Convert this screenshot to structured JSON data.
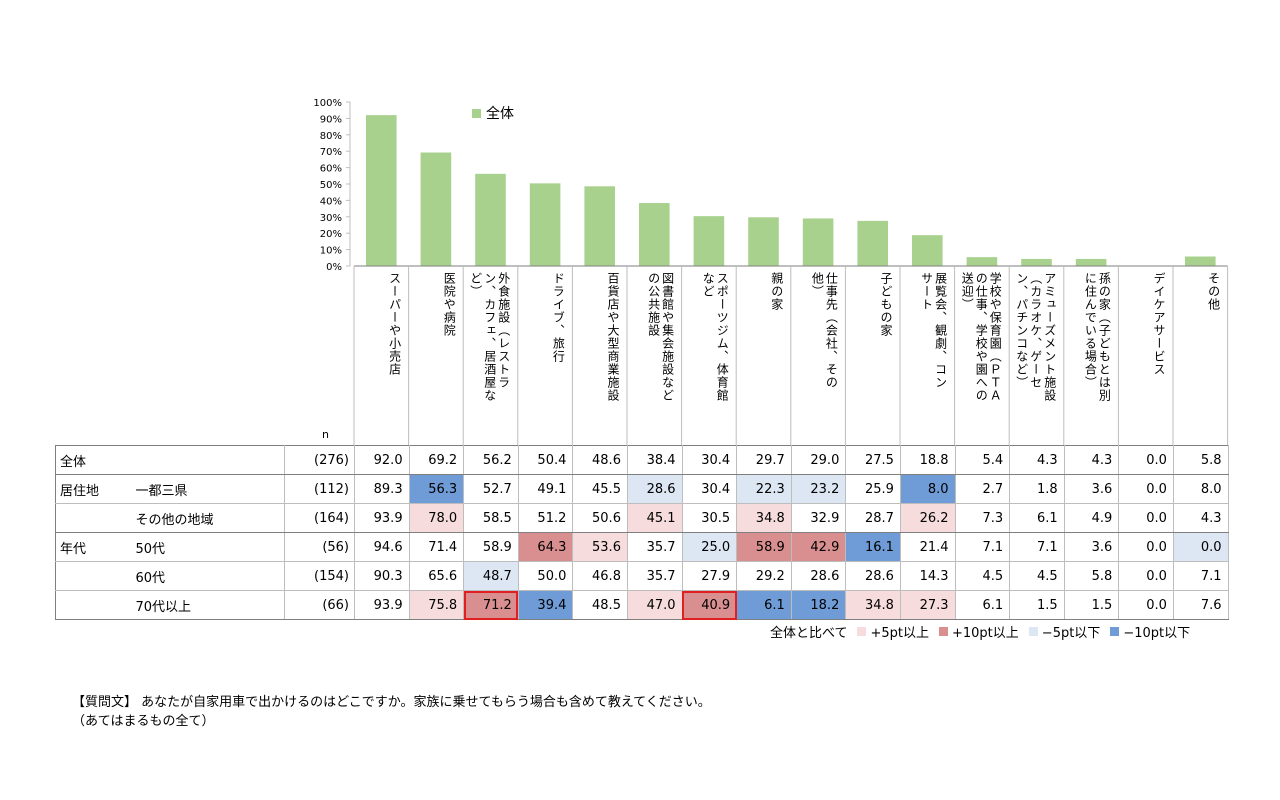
{
  "chart_data": {
    "type": "bar",
    "legend": "全体",
    "legend_color": "#a9d18e",
    "ylim": [
      0,
      100
    ],
    "y_ticks": [
      "0%",
      "10%",
      "20%",
      "30%",
      "40%",
      "50%",
      "60%",
      "70%",
      "80%",
      "90%",
      "100%"
    ],
    "categories": [
      "スーパーや小売店",
      "医院や病院",
      "外食施設（レストラン、カフェ、居酒屋など）",
      "ドライブ、旅行",
      "百貨店や大型商業施設",
      "図書館や集会施設などの公共施設",
      "スポーツジム、体育館など",
      "親の家",
      "仕事先（会社、その他）",
      "子どもの家",
      "展覧会、観劇、コンサート",
      "学校や保育園（ＰＴＡの仕事、学校や園への送迎）",
      "アミューズメント施設（カラオケ、ゲーセン、パチンコなど）",
      "孫の家（子どもとは別に住んでいる場合）",
      "デイケアサービス",
      "その他"
    ],
    "column_lines": [
      [
        "スーパーや小売店"
      ],
      [
        "医院や病院"
      ],
      [
        "外食施設（レストラ",
        "ン、カフェ、居酒屋な",
        "ど）"
      ],
      [
        "ドライブ、旅行"
      ],
      [
        "百貨店や大型商業施設"
      ],
      [
        "図書館や集会施設など",
        "の公共施設"
      ],
      [
        "スポーツジム、体育館",
        "など"
      ],
      [
        "親の家"
      ],
      [
        "仕事先（会社、その",
        "他）"
      ],
      [
        "子どもの家"
      ],
      [
        "展覧会、観劇、コン",
        "サート"
      ],
      [
        "学校や保育園（ＰＴＡ",
        "の仕事、学校や園への",
        "送迎）"
      ],
      [
        "アミューズメント施設",
        "（カラオケ、ゲーセ",
        "ン、パチンコなど）"
      ],
      [
        "孫の家（子どもとは別",
        "に住んでいる場合）"
      ],
      [
        "デイケアサービス"
      ],
      [
        "その他"
      ]
    ],
    "values": [
      92.0,
      69.2,
      56.2,
      50.4,
      48.6,
      38.4,
      30.4,
      29.7,
      29.0,
      27.5,
      18.8,
      5.4,
      4.3,
      4.3,
      0.0,
      5.8
    ]
  },
  "table": {
    "n_header": "n",
    "rows": [
      {
        "group": "全体",
        "sub": "",
        "n": "(276)",
        "values": [
          "92.0",
          "69.2",
          "56.2",
          "50.4",
          "48.6",
          "38.4",
          "30.4",
          "29.7",
          "29.0",
          "27.5",
          "18.8",
          "5.4",
          "4.3",
          "4.3",
          "0.0",
          "5.8"
        ],
        "marks": [
          "",
          "",
          "",
          "",
          "",
          "",
          "",
          "",
          "",
          "",
          "",
          "",
          "",
          "",
          "",
          ""
        ]
      },
      {
        "group": "居住地",
        "sub": "一都三県",
        "n": "(112)",
        "values": [
          "89.3",
          "56.3",
          "52.7",
          "49.1",
          "45.5",
          "28.6",
          "30.4",
          "22.3",
          "23.2",
          "25.9",
          "8.0",
          "2.7",
          "1.8",
          "3.6",
          "0.0",
          "8.0"
        ],
        "marks": [
          "",
          "m10",
          "",
          "",
          "",
          "m5",
          "",
          "m5",
          "m5",
          "",
          "m10",
          "",
          "",
          "",
          "",
          ""
        ]
      },
      {
        "group": "",
        "sub": "その他の地域",
        "n": "(164)",
        "values": [
          "93.9",
          "78.0",
          "58.5",
          "51.2",
          "50.6",
          "45.1",
          "30.5",
          "34.8",
          "32.9",
          "28.7",
          "26.2",
          "7.3",
          "6.1",
          "4.9",
          "0.0",
          "4.3"
        ],
        "marks": [
          "",
          "p5",
          "",
          "",
          "",
          "p5",
          "",
          "p5",
          "",
          "",
          "p5",
          "",
          "",
          "",
          "",
          ""
        ]
      },
      {
        "group": "年代",
        "sub": "50代",
        "n": "(56)",
        "values": [
          "94.6",
          "71.4",
          "58.9",
          "64.3",
          "53.6",
          "35.7",
          "25.0",
          "58.9",
          "42.9",
          "16.1",
          "21.4",
          "7.1",
          "7.1",
          "3.6",
          "0.0",
          "0.0"
        ],
        "marks": [
          "",
          "",
          "",
          "p10",
          "p5",
          "",
          "m5",
          "p10",
          "p10",
          "m10",
          "",
          "",
          "",
          "",
          "",
          "m5"
        ]
      },
      {
        "group": "",
        "sub": "60代",
        "n": "(154)",
        "values": [
          "90.3",
          "65.6",
          "48.7",
          "50.0",
          "46.8",
          "35.7",
          "27.9",
          "29.2",
          "28.6",
          "28.6",
          "14.3",
          "4.5",
          "4.5",
          "5.8",
          "0.0",
          "7.1"
        ],
        "marks": [
          "",
          "",
          "m5",
          "",
          "",
          "",
          "",
          "",
          "",
          "",
          "",
          "",
          "",
          "",
          "",
          ""
        ]
      },
      {
        "group": "",
        "sub": "70代以上",
        "n": "(66)",
        "values": [
          "93.9",
          "75.8",
          "71.2",
          "39.4",
          "48.5",
          "47.0",
          "40.9",
          "6.1",
          "18.2",
          "34.8",
          "27.3",
          "6.1",
          "1.5",
          "1.5",
          "0.0",
          "7.6"
        ],
        "marks": [
          "",
          "p5",
          "p10 hl",
          "m10",
          "",
          "p5",
          "p10 hl",
          "m10",
          "m10",
          "p5",
          "p5",
          "",
          "",
          "",
          "",
          ""
        ]
      }
    ]
  },
  "colors": {
    "bar": "#a9d18e",
    "plus5": "#f6dcdc",
    "plus10": "#d98f8f",
    "minus5": "#dde6f3",
    "minus10": "#6f9bd6",
    "highlight": "#e02020"
  },
  "legend_bottom": {
    "lead": "全体と比べて",
    "plus5": "+5pt以上",
    "plus10": "+10pt以上",
    "minus5": "−5pt以下",
    "minus10": "−10pt以下"
  },
  "question": {
    "line1": "【質問文】 あなたが自家用車で出かけるのはどこですか。家族に乗せてもらう場合も含めて教えてください。",
    "line2": "（あてはまるもの全て）"
  }
}
